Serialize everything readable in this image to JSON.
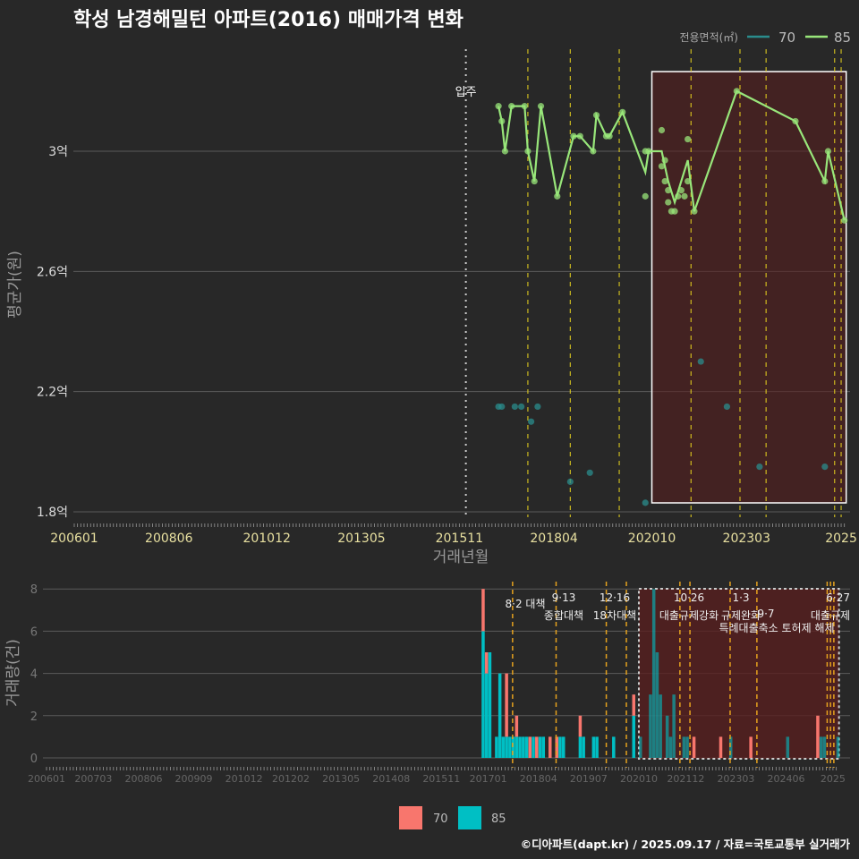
{
  "title": "학성 남경해밀턴 아파트(2016) 매매가격 변화",
  "footer": "©디아파트(dapt.kr) / 2025.09.17 / 자료=국토교통부 실거래가",
  "colors": {
    "bg": "#282828",
    "line70": "#2a8c8c",
    "line85": "#98e67a",
    "bar70": "#F8766D",
    "bar85": "#00BFC4",
    "policy": "#e6d21e",
    "policy_bottom": "#e6a21e",
    "highlight": "#5a1e1e"
  },
  "chart_data": [
    {
      "type": "line",
      "title": "학성 남경해밀턴 아파트(2016) 매매가격 변화",
      "xlabel": "거래년월",
      "ylabel": "평균가(원)",
      "ylim": [
        1.77,
        3.35
      ],
      "yunit": "억",
      "yticks": [
        {
          "v": 1.8,
          "label": "1.8억"
        },
        {
          "v": 2.2,
          "label": "2.2억"
        },
        {
          "v": 2.6,
          "label": "2.6억"
        },
        {
          "v": 3.0,
          "label": "3억"
        }
      ],
      "xticks": [
        "200601",
        "200806",
        "201012",
        "201305",
        "201511",
        "201804",
        "202010",
        "202303",
        "2025"
      ],
      "xtick_months": [
        "200601",
        "200806",
        "201012",
        "201305",
        "201511",
        "201804",
        "202010",
        "202303",
        "202508"
      ],
      "xlim": [
        "200601",
        "202509"
      ],
      "legend": {
        "title": "전용면적(㎡)",
        "items": [
          "70",
          "85"
        ],
        "placement": "top-right"
      },
      "move_in": {
        "month": "201601",
        "label": "입주"
      },
      "policy_months": [
        "201708",
        "201809",
        "201912",
        "202110",
        "202301",
        "202309",
        "202506",
        "202508"
      ],
      "highlight": [
        "202010",
        "202509"
      ],
      "series": [
        {
          "name": "85",
          "line": [
            [
              "201611",
              3.15
            ],
            [
              "201612",
              3.1
            ],
            [
              "201701",
              3.0
            ],
            [
              "201703",
              3.15
            ],
            [
              "201707",
              3.15
            ],
            [
              "201708",
              3.0
            ],
            [
              "201710",
              2.9
            ],
            [
              "201712",
              3.15
            ],
            [
              "201805",
              2.85
            ],
            [
              "201810",
              3.05
            ],
            [
              "201812",
              3.05
            ],
            [
              "201904",
              3.0
            ],
            [
              "201905",
              3.12
            ],
            [
              "201908",
              3.05
            ],
            [
              "201909",
              3.05
            ],
            [
              "202001",
              3.13
            ],
            [
              "202008",
              2.93
            ],
            [
              "202009",
              3.0
            ],
            [
              "202101",
              3.0
            ],
            [
              "202103",
              2.9
            ],
            [
              "202105",
              2.83
            ],
            [
              "202107",
              2.9
            ],
            [
              "202109",
              2.97
            ],
            [
              "202111",
              2.8
            ],
            [
              "202212",
              3.2
            ],
            [
              "202406",
              3.1
            ],
            [
              "202503",
              2.9
            ],
            [
              "202504",
              3.0
            ],
            [
              "202509",
              2.77
            ]
          ],
          "points": [
            [
              "201611",
              3.15
            ],
            [
              "201612",
              3.1
            ],
            [
              "201701",
              3.0
            ],
            [
              "201703",
              3.15
            ],
            [
              "201707",
              3.15
            ],
            [
              "201708",
              3.0
            ],
            [
              "201710",
              2.9
            ],
            [
              "201712",
              3.15
            ],
            [
              "201805",
              2.85
            ],
            [
              "201810",
              3.05
            ],
            [
              "201812",
              3.05
            ],
            [
              "201904",
              3.0
            ],
            [
              "201905",
              3.12
            ],
            [
              "201908",
              3.05
            ],
            [
              "201909",
              3.05
            ],
            [
              "202001",
              3.13
            ],
            [
              "202008",
              2.85
            ],
            [
              "202008",
              3.0
            ],
            [
              "202009",
              3.0
            ],
            [
              "202101",
              3.07
            ],
            [
              "202101",
              2.95
            ],
            [
              "202102",
              2.97
            ],
            [
              "202102",
              2.9
            ],
            [
              "202103",
              2.87
            ],
            [
              "202103",
              2.83
            ],
            [
              "202104",
              2.8
            ],
            [
              "202105",
              2.8
            ],
            [
              "202106",
              2.85
            ],
            [
              "202107",
              2.87
            ],
            [
              "202108",
              2.85
            ],
            [
              "202109",
              3.04
            ],
            [
              "202109",
              2.9
            ],
            [
              "202111",
              2.8
            ],
            [
              "202212",
              3.2
            ],
            [
              "202406",
              3.1
            ],
            [
              "202503",
              2.9
            ],
            [
              "202504",
              3.0
            ],
            [
              "202509",
              2.77
            ]
          ]
        },
        {
          "name": "70",
          "line": [],
          "points": [
            [
              "201611",
              2.15
            ],
            [
              "201612",
              2.15
            ],
            [
              "201704",
              2.15
            ],
            [
              "201706",
              2.15
            ],
            [
              "201709",
              2.1
            ],
            [
              "201711",
              2.15
            ],
            [
              "201809",
              1.9
            ],
            [
              "201903",
              1.93
            ],
            [
              "202008",
              1.83
            ],
            [
              "202201",
              2.3
            ],
            [
              "202209",
              2.15
            ],
            [
              "202307",
              1.95
            ],
            [
              "202503",
              1.95
            ]
          ]
        }
      ]
    },
    {
      "type": "bar",
      "stacked": true,
      "ylabel": "거래량(건)",
      "ylim": [
        0,
        8
      ],
      "yticks": [
        "0",
        "2",
        "4",
        "6",
        "8"
      ],
      "xticks": [
        "200601",
        "200703",
        "200806",
        "200909",
        "201012",
        "201202",
        "201305",
        "201408",
        "201511",
        "201701",
        "201804",
        "201907",
        "202010",
        "202112",
        "202303",
        "202406",
        "2025"
      ],
      "legend": {
        "items": [
          "70",
          "85"
        ],
        "placement": "bottom"
      },
      "annotations": [
        {
          "month": "201708",
          "line1": "",
          "line2": "8·2 대책"
        },
        {
          "month": "201809",
          "line1": "9·13",
          "line2": "종합대책"
        },
        {
          "month": "201912",
          "line1": "12·16",
          "line2": "18차대책"
        },
        {
          "month": "202110",
          "line1": "10·26",
          "line2": "대출규제강화"
        },
        {
          "month": "202301",
          "line1": "1·3",
          "line2": "규제완화"
        },
        {
          "month": "202309",
          "line1": "9·7",
          "line2": "특례대출축소 토허제 해제"
        },
        {
          "month": "202506",
          "line1": "6·27",
          "line2": "대출규제"
        }
      ],
      "policy_months": [
        "201708",
        "201809",
        "201912",
        "202006",
        "202110",
        "202201",
        "202301",
        "202309",
        "202506",
        "202507",
        "202508"
      ],
      "bars": [
        [
          "201611",
          2,
          6
        ],
        [
          "201612",
          1,
          4
        ],
        [
          "201701",
          0,
          5
        ],
        [
          "201703",
          0,
          1
        ],
        [
          "201704",
          0,
          4
        ],
        [
          "201705",
          0,
          1
        ],
        [
          "201706",
          3,
          1
        ],
        [
          "201707",
          0,
          1
        ],
        [
          "201708",
          0,
          1
        ],
        [
          "201709",
          1,
          1
        ],
        [
          "201710",
          0,
          1
        ],
        [
          "201711",
          0,
          1
        ],
        [
          "201712",
          0,
          1
        ],
        [
          "201801",
          1,
          0
        ],
        [
          "201802",
          0,
          1
        ],
        [
          "201803",
          1,
          0
        ],
        [
          "201804",
          0,
          1
        ],
        [
          "201805",
          0,
          1
        ],
        [
          "201807",
          1,
          0
        ],
        [
          "201809",
          1,
          0
        ],
        [
          "201810",
          0,
          1
        ],
        [
          "201811",
          0,
          1
        ],
        [
          "201904",
          1,
          1
        ],
        [
          "201905",
          0,
          1
        ],
        [
          "201908",
          0,
          1
        ],
        [
          "201909",
          0,
          1
        ],
        [
          "202002",
          0,
          1
        ],
        [
          "202008",
          1,
          2
        ],
        [
          "202010",
          0,
          1
        ],
        [
          "202101",
          0,
          3
        ],
        [
          "202102",
          0,
          8
        ],
        [
          "202103",
          0,
          5
        ],
        [
          "202104",
          0,
          3
        ],
        [
          "202106",
          0,
          2
        ],
        [
          "202107",
          0,
          1
        ],
        [
          "202108",
          0,
          3
        ],
        [
          "202111",
          0,
          1
        ],
        [
          "202112",
          0,
          1
        ],
        [
          "202202",
          1,
          0
        ],
        [
          "202210",
          1,
          0
        ],
        [
          "202301",
          0,
          1
        ],
        [
          "202307",
          1,
          0
        ],
        [
          "202406",
          0,
          1
        ],
        [
          "202503",
          2,
          0
        ],
        [
          "202504",
          0,
          1
        ],
        [
          "202505",
          0,
          1
        ],
        [
          "202509",
          0,
          1
        ]
      ]
    }
  ]
}
